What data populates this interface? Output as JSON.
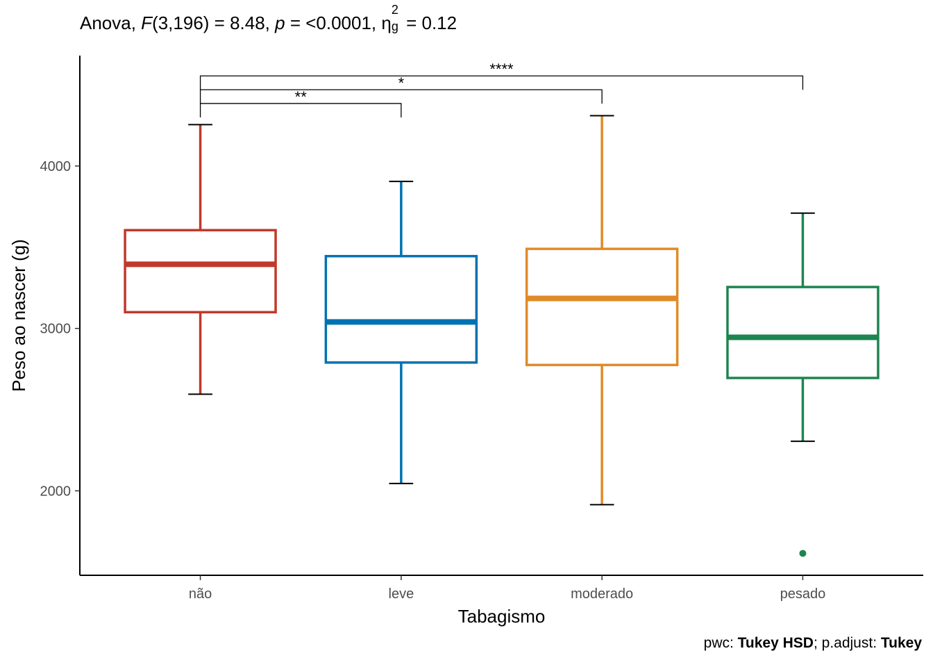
{
  "title": {
    "prefix": "Anova, ",
    "f_symbol": "F",
    "f_part": "(3,196) = 8.48, ",
    "p_symbol": "p",
    "p_part": " = <0.0001, ",
    "eta": "η",
    "eta_sub": "g",
    "eta_sup": "2",
    "eta_part": " = 0.12"
  },
  "caption": {
    "pwc_label": "pwc: ",
    "pwc_value": "Tukey HSD",
    "sep": "; p.adjust: ",
    "adjust_value": "Tukey"
  },
  "chart_data": {
    "type": "box",
    "xlabel": "Tabagismo",
    "ylabel": "Peso ao nascer (g)",
    "ylim": [
      1480,
      4680
    ],
    "yticks": [
      2000,
      3000,
      4000
    ],
    "grid": false,
    "categories": [
      "não",
      "leve",
      "moderado",
      "pesado"
    ],
    "colors": [
      "#c0392b",
      "#0072b2",
      "#e08a28",
      "#1e8450"
    ],
    "boxes": [
      {
        "category": "não",
        "min": 2595,
        "q1": 3100,
        "median": 3395,
        "q3": 3605,
        "max": 4255,
        "outliers": []
      },
      {
        "category": "leve",
        "min": 2045,
        "q1": 2790,
        "median": 3040,
        "q3": 3445,
        "max": 3905,
        "outliers": []
      },
      {
        "category": "moderado",
        "min": 1915,
        "q1": 2775,
        "median": 3185,
        "q3": 3490,
        "max": 4310,
        "outliers": []
      },
      {
        "category": "pesado",
        "min": 2305,
        "q1": 2695,
        "median": 2945,
        "q3": 3255,
        "max": 3710,
        "outliers": [
          1615
        ]
      }
    ],
    "comparisons": [
      {
        "group1": "não",
        "group2": "leve",
        "label": "**",
        "y": 4385
      },
      {
        "group1": "não",
        "group2": "moderado",
        "label": "*",
        "y": 4470
      },
      {
        "group1": "não",
        "group2": "pesado",
        "label": "****",
        "y": 4555
      }
    ]
  }
}
